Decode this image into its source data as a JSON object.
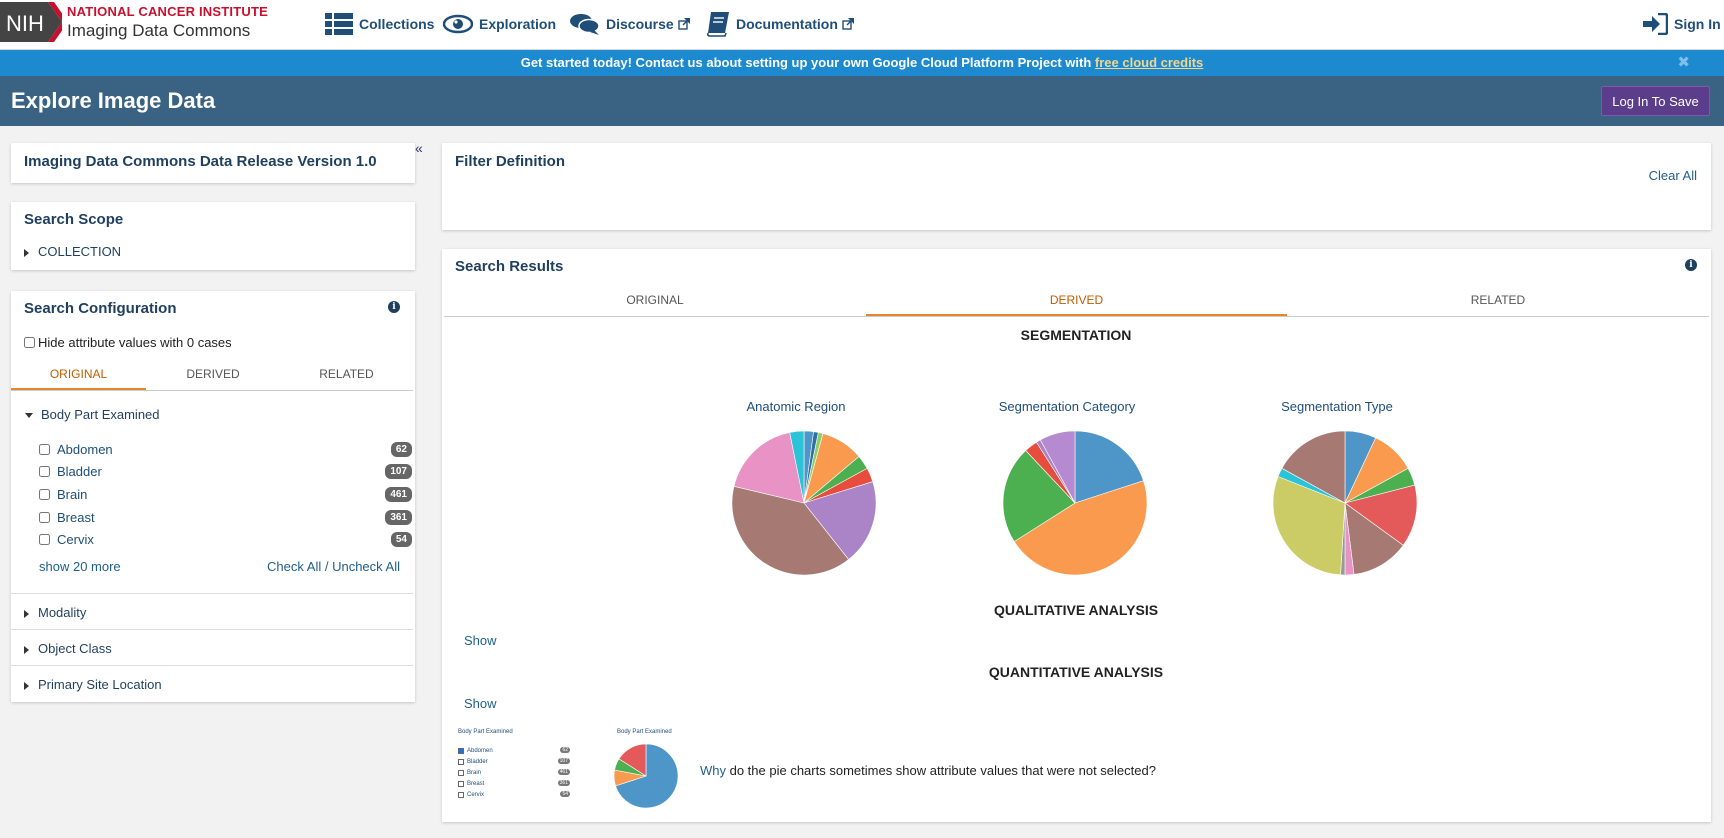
{
  "nav": {
    "logo_mark": "NIH",
    "institute": "NATIONAL CANCER INSTITUTE",
    "product": "Imaging Data Commons",
    "items": [
      {
        "label": "Collections"
      },
      {
        "label": "Exploration"
      },
      {
        "label": "Discourse"
      },
      {
        "label": "Documentation"
      }
    ],
    "sign_in": "Sign In"
  },
  "banner": {
    "text": "Get started today! Contact us about setting up your own Google Cloud Platform Project with ",
    "link": "free cloud credits",
    "close": "✖"
  },
  "page": {
    "title": "Explore Image Data",
    "login_button": "Log In To Save"
  },
  "left": {
    "collapse": "«",
    "release": "Imaging Data Commons Data Release Version 1.0",
    "scope": {
      "title": "Search Scope",
      "item": "COLLECTION"
    },
    "config": {
      "title": "Search Configuration",
      "hide_zero": "Hide attribute values with 0 cases",
      "tabs": [
        "ORIGINAL",
        "DERIVED",
        "RELATED"
      ],
      "body_part": "Body Part Examined",
      "attributes": [
        {
          "label": "Abdomen",
          "count": "62"
        },
        {
          "label": "Bladder",
          "count": "107"
        },
        {
          "label": "Brain",
          "count": "461"
        },
        {
          "label": "Breast",
          "count": "361"
        },
        {
          "label": "Cervix",
          "count": "54"
        }
      ],
      "show_more": "show 20 more",
      "check_all": "Check All",
      "slash": " / ",
      "uncheck_all": "Uncheck All",
      "facets": [
        "Modality",
        "Object Class",
        "Primary Site Location"
      ]
    }
  },
  "filter": {
    "title": "Filter Definition",
    "clear": "Clear All"
  },
  "results": {
    "title": "Search Results",
    "tabs": [
      "ORIGINAL",
      "DERIVED",
      "RELATED"
    ],
    "segmentation": "SEGMENTATION",
    "qualitative": "QUALITATIVE ANALYSIS",
    "quantitative": "QUANTITATIVE ANALYSIS",
    "show": "Show",
    "why_link": "Why",
    "why_text": " do the pie charts sometimes show attribute values that were not selected?",
    "mini": {
      "left_title": "Body Part Examined",
      "right_title": "Body Part Examined",
      "items": [
        {
          "label": "Abdomen",
          "count": "62",
          "checked": true
        },
        {
          "label": "Bladder",
          "count": "107",
          "checked": false
        },
        {
          "label": "Brain",
          "count": "461",
          "checked": false
        },
        {
          "label": "Breast",
          "count": "361",
          "checked": false
        },
        {
          "label": "Cervix",
          "count": "54",
          "checked": false
        }
      ]
    }
  },
  "chart_data": [
    {
      "type": "pie",
      "title": "Anatomic Region",
      "values": [
        2,
        1,
        1,
        9,
        3,
        3,
        18,
        37,
        17,
        3
      ],
      "colors": [
        "#4e95c8",
        "#2f6fa5",
        "#8fcf6a",
        "#f99a4e",
        "#4caf50",
        "#e74c3c",
        "#ab84c8",
        "#a67a73",
        "#e892c6",
        "#2bc4d6"
      ]
    },
    {
      "type": "pie",
      "title": "Segmentation Category",
      "values": [
        20,
        46,
        22,
        3,
        1,
        8
      ],
      "colors": [
        "#4e95c8",
        "#f99a4e",
        "#4caf50",
        "#e74c3c",
        "#ab84c8",
        "#b58ad0"
      ]
    },
    {
      "type": "pie",
      "title": "Segmentation Type",
      "values": [
        7,
        10,
        4,
        14,
        13,
        2,
        1,
        30,
        2,
        17
      ],
      "colors": [
        "#4e95c8",
        "#f99a4e",
        "#4caf50",
        "#e45a5a",
        "#a67a73",
        "#e892c6",
        "#999999",
        "#cccc66",
        "#2bc4d6",
        "#a67a73"
      ]
    },
    {
      "type": "pie",
      "title": "Body Part Examined",
      "values": [
        70,
        8,
        6,
        16
      ],
      "colors": [
        "#4e95c8",
        "#f99a4e",
        "#4caf50",
        "#e45a5a"
      ]
    }
  ]
}
